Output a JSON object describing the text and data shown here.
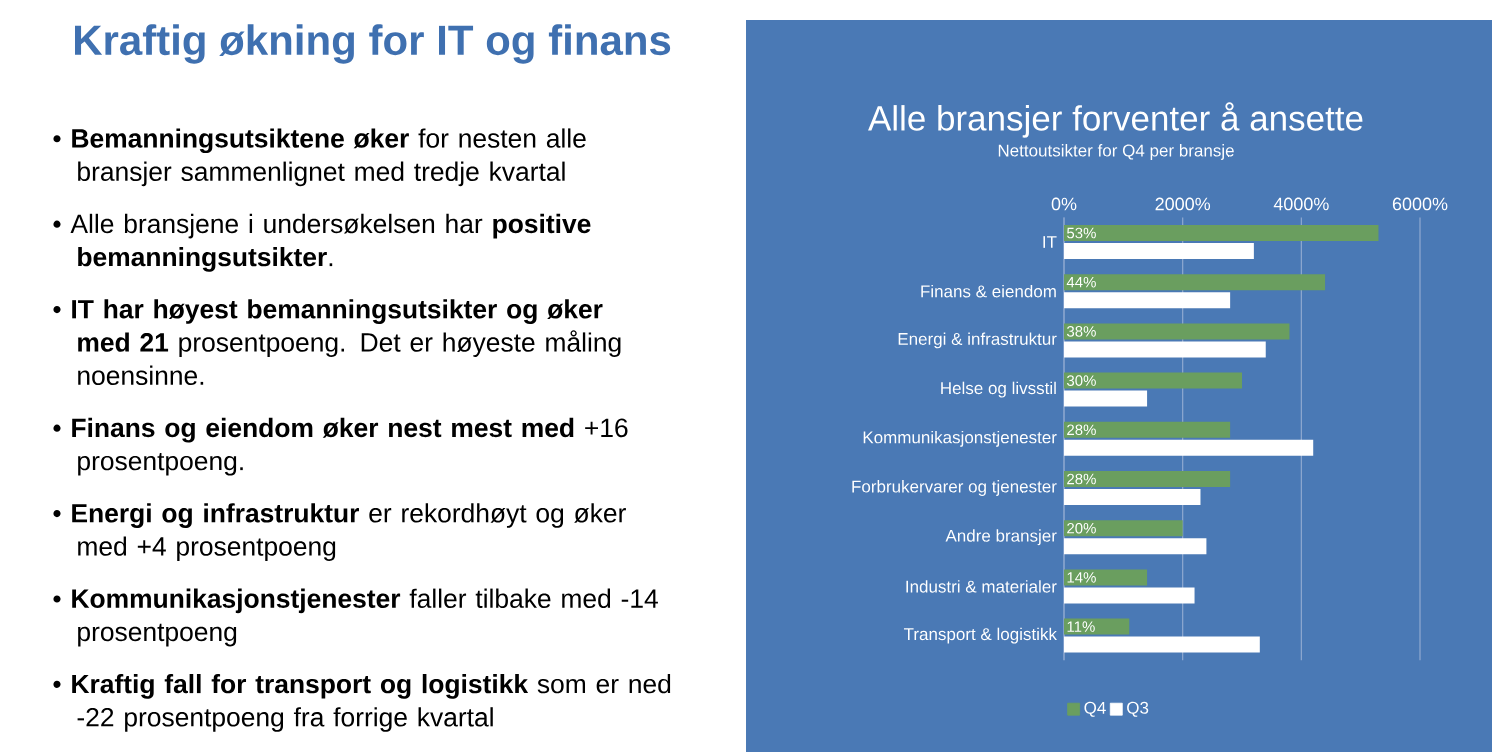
{
  "chart_data": [
    {
      "type": "other",
      "title": "Kraftig økning for IT og finans",
      "annotations": [
        "• **Bemanningsutsiktene øker** for nesten alle bransjer sammenlignet med tredje kvartal",
        "• Alle bransjene i undersøkelsen har **positive bemanningsutsikter**.",
        "• **IT har høyest bemanningsutsikter og øker med 21** prosentpoeng. Det er høyeste måling noensinne.",
        "• **Finans og eiendom øker nest mest med** +16 prosentpoeng.",
        "• **Energi og infrastruktur** er rekordhøyt og øker med +4 prosentpoeng",
        "• **Kommunikasjonstjenester** faller tilbake med -14 prosentpoeng",
        "• **Kraftig fall for transport og logistikk** som er ned -22 prosentpoeng fra forrige kvartal"
      ]
    },
    {
      "type": "bar",
      "orientation": "horizontal",
      "title": "Alle bransjer forventer å ansette",
      "subtitle": "Nettoutsikter for Q4 per bransje",
      "categories": [
        "IT",
        "Finans & eiendom",
        "Energi & infrastruktur",
        "Helse og livsstil",
        "Kommunikasjonstjenester",
        "Forbrukervarer og tjenester",
        "Andre bransjer",
        "Industri & materialer",
        "Transport & logistikk"
      ],
      "series": [
        {
          "name": "Q4",
          "color": "#6a9e5f",
          "values": [
            53,
            44,
            38,
            30,
            28,
            28,
            20,
            14,
            11
          ],
          "value_labels": [
            "53%",
            "44%",
            "38%",
            "30%",
            "28%",
            "28%",
            "20%",
            "14%",
            "11%"
          ]
        },
        {
          "name": "Q3",
          "color": "#ffffff",
          "values": [
            32,
            28,
            34,
            14,
            42,
            23,
            24,
            22,
            33
          ]
        }
      ],
      "xlim": [
        0,
        60
      ],
      "xticks": [
        {
          "value": 0,
          "label": "0%"
        },
        {
          "value": 20,
          "label": "2000%"
        },
        {
          "value": 40,
          "label": "4000%"
        },
        {
          "value": 60,
          "label": "6000%"
        }
      ],
      "grid": "x",
      "legend": "bottom"
    }
  ]
}
